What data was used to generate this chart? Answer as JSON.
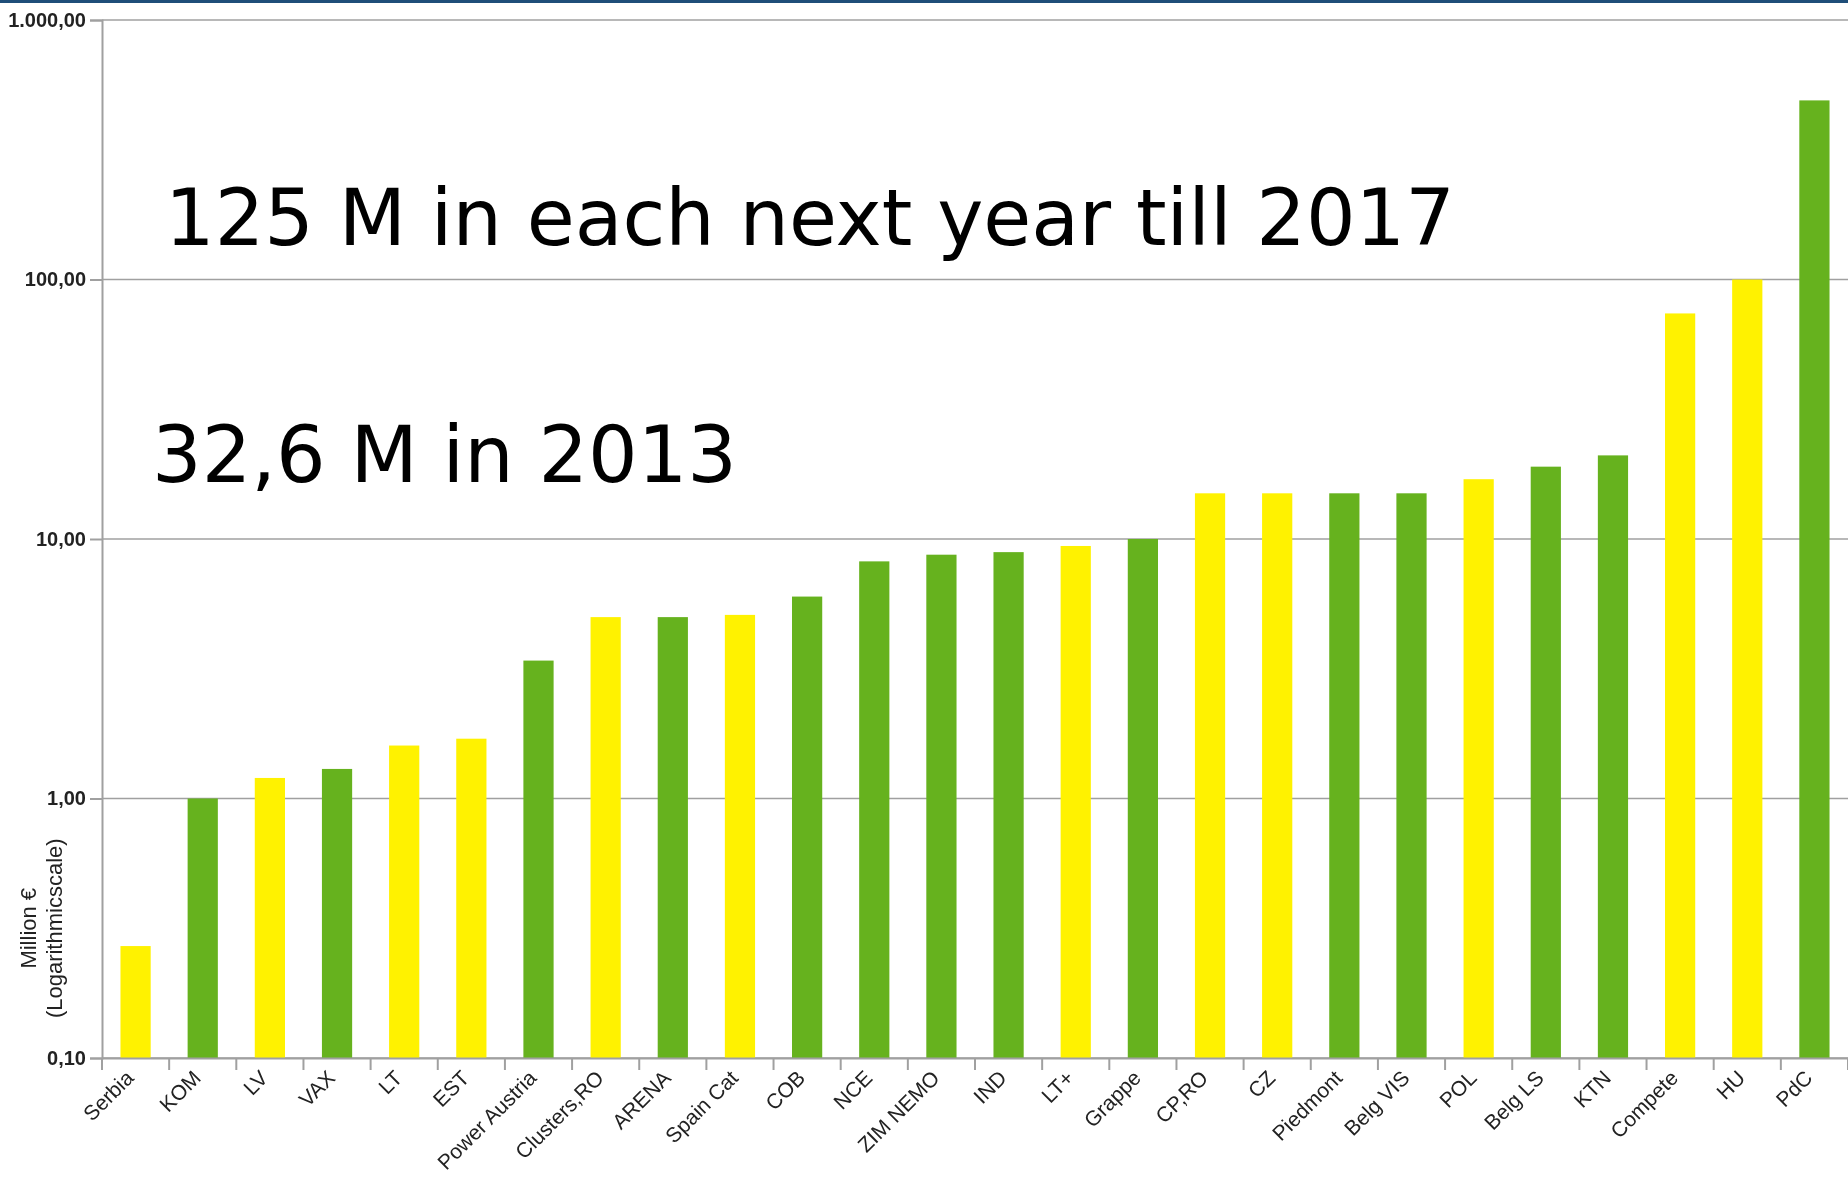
{
  "chart_data": {
    "type": "bar",
    "log": true,
    "grid": "y",
    "ylabel": "Million € (Logarithmicscale)",
    "categories": [
      "Serbia",
      "KOM",
      "LV",
      "VAX",
      "LT",
      "EST",
      "Power Austria",
      "Clusters,RO",
      "ARENA",
      "Spain Cat",
      "COB",
      "NCE",
      "ZIM NEMO",
      "IND",
      "LT+",
      "Grappe",
      "CP,RO",
      "CZ",
      "Piedmont",
      "Belg VIS",
      "POL",
      "Belg LS",
      "KTN",
      "Compete",
      "HU",
      "PdC"
    ],
    "values": [
      0.27,
      1.0,
      1.2,
      1.3,
      1.6,
      1.7,
      3.4,
      5,
      5,
      5.1,
      6,
      8.2,
      8.7,
      8.9,
      9.4,
      10,
      15,
      15,
      15,
      15,
      17,
      19,
      21,
      74,
      100,
      490
    ],
    "colors": [
      "#fff200",
      "#66b21e",
      "#fff200",
      "#66b21e",
      "#fff200",
      "#fff200",
      "#66b21e",
      "#fff200",
      "#66b21e",
      "#fff200",
      "#66b21e",
      "#66b21e",
      "#66b21e",
      "#66b21e",
      "#fff200",
      "#66b21e",
      "#fff200",
      "#fff200",
      "#66b21e",
      "#66b21e",
      "#fff200",
      "#66b21e",
      "#66b21e",
      "#fff200",
      "#fff200",
      "#66b21e"
    ],
    "ylim": [
      0.1,
      1000
    ],
    "yticks": [
      {
        "value": 0.1,
        "label": "0,10"
      },
      {
        "value": 1,
        "label": "1,00"
      },
      {
        "value": 10,
        "label": "10,00"
      },
      {
        "value": 100,
        "label": "100,00"
      },
      {
        "value": 1000,
        "label": "1.000,00"
      }
    ],
    "annotations": [
      "125 M in each next year till 2017",
      "32,6 M in 2013"
    ]
  }
}
